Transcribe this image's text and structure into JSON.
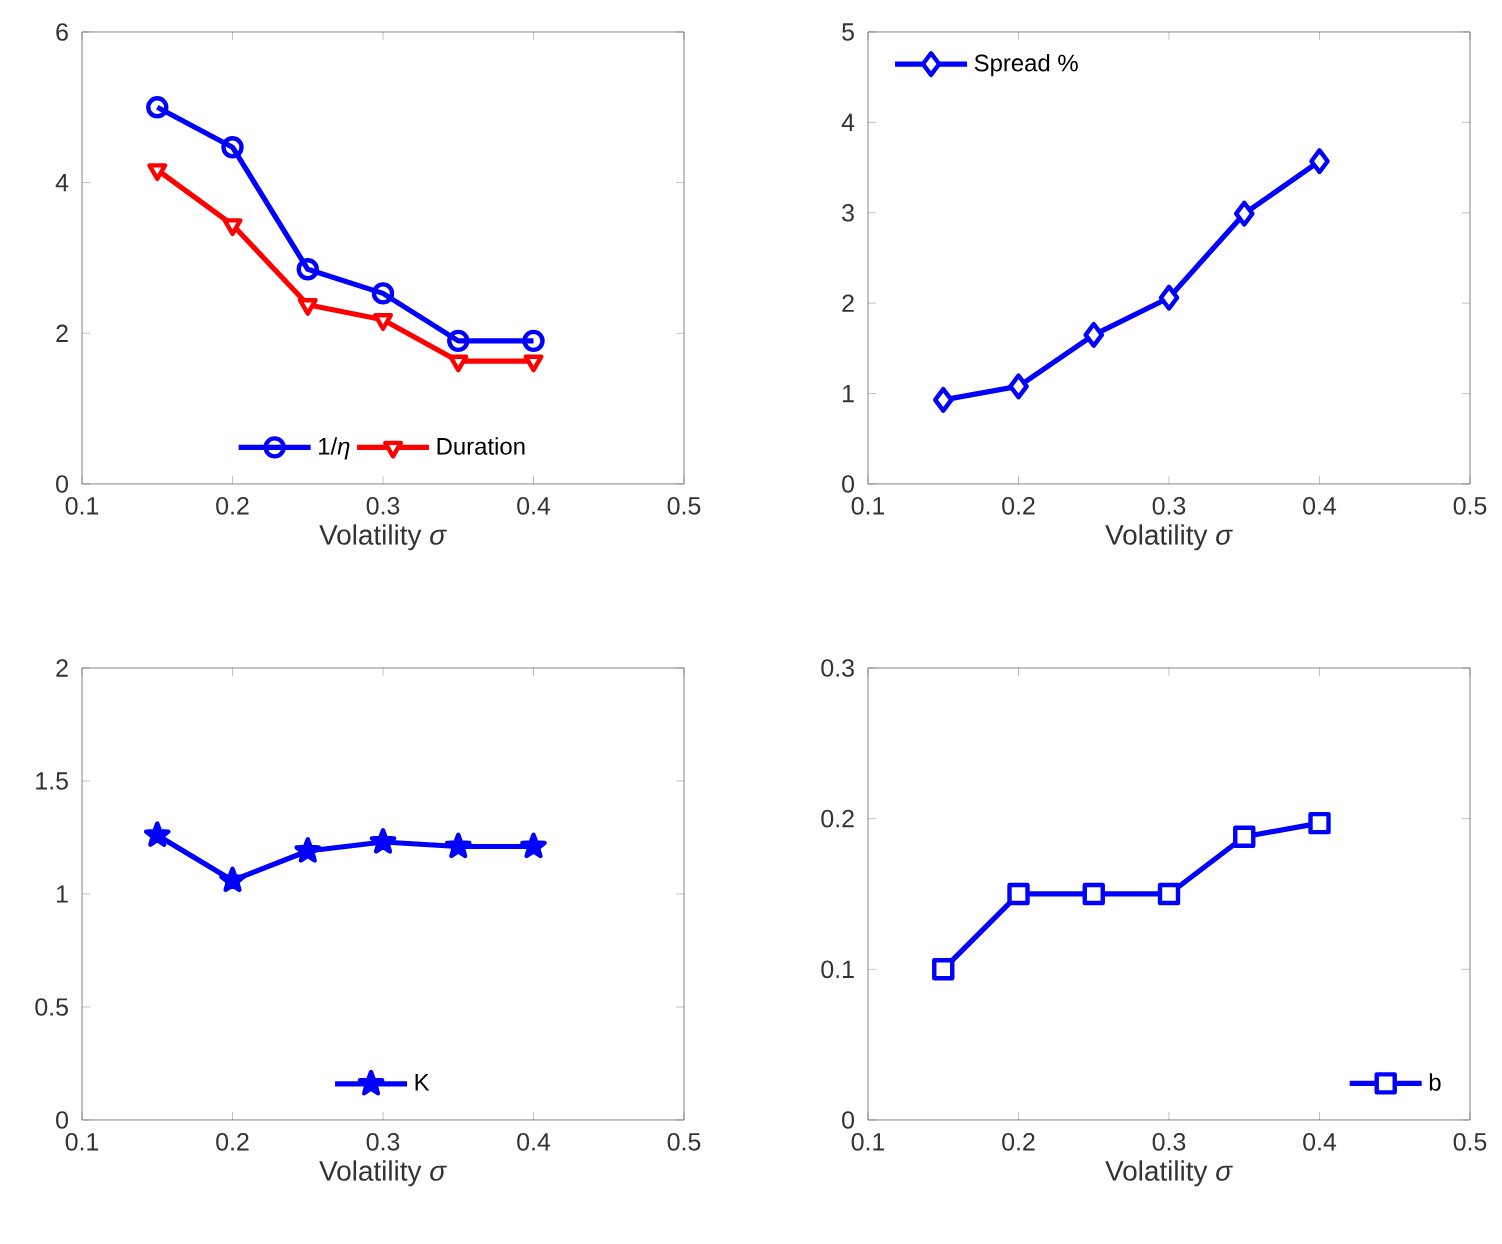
{
  "chart_data": [
    {
      "type": "line",
      "xlabel": "Volatility *σ*",
      "x": [
        0.15,
        0.2,
        0.25,
        0.3,
        0.35,
        0.4
      ],
      "xlim": [
        0.1,
        0.5
      ],
      "xticks": [
        0.1,
        0.2,
        0.3,
        0.4,
        0.5
      ],
      "ylim": [
        0,
        6
      ],
      "yticks": [
        0,
        2,
        4,
        6
      ],
      "legend": "bottom",
      "series": [
        {
          "name": "1/*η*",
          "color": "#0000ff",
          "marker": "circle",
          "values": [
            5.0,
            4.47,
            2.85,
            2.53,
            1.9,
            1.9
          ]
        },
        {
          "name": "Duration",
          "color": "#ff0000",
          "marker": "triangle",
          "values": [
            4.17,
            3.44,
            2.38,
            2.18,
            1.63,
            1.63
          ]
        }
      ]
    },
    {
      "type": "line",
      "xlabel": "Volatility *σ*",
      "x": [
        0.15,
        0.2,
        0.25,
        0.3,
        0.35,
        0.4
      ],
      "xlim": [
        0.1,
        0.5
      ],
      "xticks": [
        0.1,
        0.2,
        0.3,
        0.4,
        0.5
      ],
      "ylim": [
        0,
        5
      ],
      "yticks": [
        0,
        1,
        2,
        3,
        4,
        5
      ],
      "legend": "top left",
      "series": [
        {
          "name": "Spread %",
          "color": "#0000ff",
          "marker": "diamond",
          "values": [
            0.93,
            1.08,
            1.65,
            2.06,
            2.99,
            3.57
          ]
        }
      ]
    },
    {
      "type": "line",
      "xlabel": "Volatility *σ*",
      "x": [
        0.15,
        0.2,
        0.25,
        0.3,
        0.35,
        0.4
      ],
      "xlim": [
        0.1,
        0.5
      ],
      "xticks": [
        0.1,
        0.2,
        0.3,
        0.4,
        0.5
      ],
      "ylim": [
        0,
        2
      ],
      "yticks": [
        0,
        0.5,
        1,
        1.5,
        2
      ],
      "legend": "bottom",
      "series": [
        {
          "name": "K",
          "color": "#0000ff",
          "marker": "star",
          "values": [
            1.26,
            1.06,
            1.19,
            1.23,
            1.21,
            1.21
          ]
        }
      ]
    },
    {
      "type": "line",
      "xlabel": "Volatility *σ*",
      "x": [
        0.15,
        0.2,
        0.25,
        0.3,
        0.35,
        0.4
      ],
      "xlim": [
        0.1,
        0.5
      ],
      "xticks": [
        0.1,
        0.2,
        0.3,
        0.4,
        0.5
      ],
      "ylim": [
        0,
        0.3
      ],
      "yticks": [
        0,
        0.1,
        0.2,
        0.3
      ],
      "legend": "bottom right",
      "series": [
        {
          "name": "b",
          "color": "#0000ff",
          "marker": "square",
          "values": [
            0.1,
            0.15,
            0.15,
            0.15,
            0.188,
            0.197
          ]
        }
      ]
    }
  ]
}
